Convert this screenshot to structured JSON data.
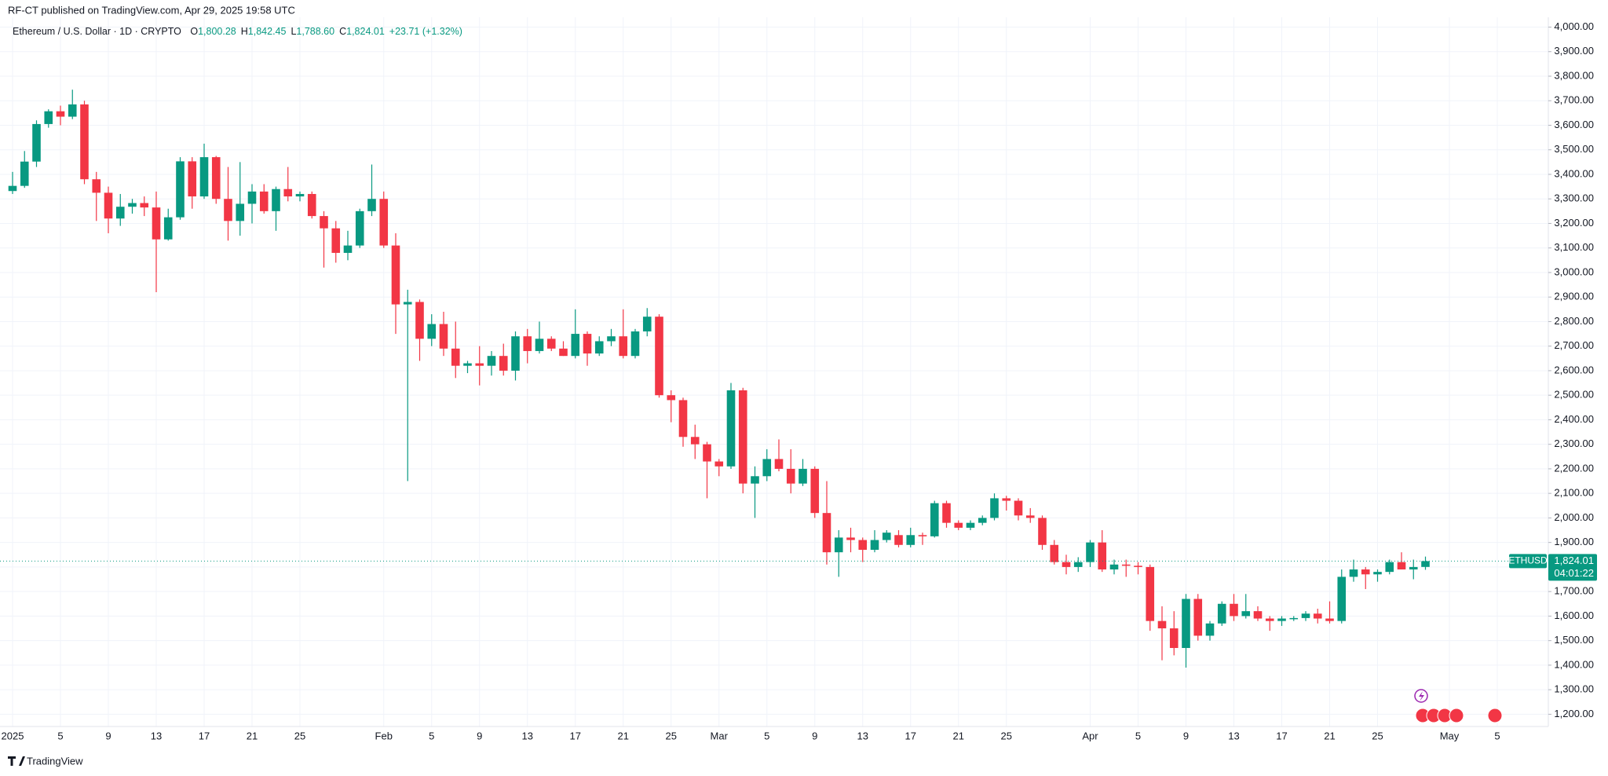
{
  "chart_data": {
    "type": "candlestick",
    "header": "RF-CT published on TradingView.com, Apr 29, 2025 19:58 UTC",
    "symbol_title": "Ethereum / U.S. Dollar · 1D · CRYPTO",
    "ohlc_labels": [
      {
        "prefix": "O",
        "label": "1,800.28"
      },
      {
        "prefix": "H",
        "label": "1,842.45"
      },
      {
        "prefix": "L",
        "label": "1,788.60"
      },
      {
        "prefix": "C",
        "label": "1,824.01"
      }
    ],
    "change_label": "+23.71 (+1.32%)",
    "last_price": {
      "symbol": "ETHUSD",
      "value": 1824.01,
      "label": "1,824.01",
      "countdown": "04:01:22"
    },
    "brand": "TradingView",
    "up_color": "#089981",
    "down_color": "#f23645",
    "grid": true,
    "x": [
      "2025-01-01",
      "2025-01-02",
      "2025-01-03",
      "2025-01-04",
      "2025-01-05",
      "2025-01-06",
      "2025-01-07",
      "2025-01-08",
      "2025-01-09",
      "2025-01-10",
      "2025-01-11",
      "2025-01-12",
      "2025-01-13",
      "2025-01-14",
      "2025-01-15",
      "2025-01-16",
      "2025-01-17",
      "2025-01-18",
      "2025-01-19",
      "2025-01-20",
      "2025-01-21",
      "2025-01-22",
      "2025-01-23",
      "2025-01-24",
      "2025-01-25",
      "2025-01-26",
      "2025-01-27",
      "2025-01-28",
      "2025-01-29",
      "2025-01-30",
      "2025-01-31",
      "2025-02-01",
      "2025-02-02",
      "2025-02-03",
      "2025-02-04",
      "2025-02-05",
      "2025-02-06",
      "2025-02-07",
      "2025-02-08",
      "2025-02-09",
      "2025-02-10",
      "2025-02-11",
      "2025-02-12",
      "2025-02-13",
      "2025-02-14",
      "2025-02-15",
      "2025-02-16",
      "2025-02-17",
      "2025-02-18",
      "2025-02-19",
      "2025-02-20",
      "2025-02-21",
      "2025-02-22",
      "2025-02-23",
      "2025-02-24",
      "2025-02-25",
      "2025-02-26",
      "2025-02-27",
      "2025-02-28",
      "2025-03-01",
      "2025-03-02",
      "2025-03-03",
      "2025-03-04",
      "2025-03-05",
      "2025-03-06",
      "2025-03-07",
      "2025-03-08",
      "2025-03-09",
      "2025-03-10",
      "2025-03-11",
      "2025-03-12",
      "2025-03-13",
      "2025-03-14",
      "2025-03-15",
      "2025-03-16",
      "2025-03-17",
      "2025-03-18",
      "2025-03-19",
      "2025-03-20",
      "2025-03-21",
      "2025-03-22",
      "2025-03-23",
      "2025-03-24",
      "2025-03-25",
      "2025-03-26",
      "2025-03-27",
      "2025-03-28",
      "2025-03-29",
      "2025-03-30",
      "2025-03-31",
      "2025-04-01",
      "2025-04-02",
      "2025-04-03",
      "2025-04-04",
      "2025-04-05",
      "2025-04-06",
      "2025-04-07",
      "2025-04-08",
      "2025-04-09",
      "2025-04-10",
      "2025-04-11",
      "2025-04-12",
      "2025-04-13",
      "2025-04-14",
      "2025-04-15",
      "2025-04-16",
      "2025-04-17",
      "2025-04-18",
      "2025-04-19",
      "2025-04-20",
      "2025-04-21",
      "2025-04-22",
      "2025-04-23",
      "2025-04-24",
      "2025-04-25",
      "2025-04-26",
      "2025-04-27",
      "2025-04-28",
      "2025-04-29"
    ],
    "open": [
      3332,
      3353,
      3452,
      3605,
      3657,
      3635,
      3685,
      3380,
      3325,
      3220,
      3268,
      3283,
      3265,
      3135,
      3225,
      3453,
      3310,
      3470,
      3300,
      3210,
      3280,
      3330,
      3250,
      3340,
      3310,
      3320,
      3230,
      3180,
      3080,
      3110,
      3250,
      3300,
      3110,
      2870,
      2880,
      2730,
      2790,
      2690,
      2620,
      2630,
      2620,
      2660,
      2600,
      2740,
      2680,
      2730,
      2690,
      2660,
      2750,
      2670,
      2720,
      2740,
      2660,
      2760,
      2820,
      2500,
      2480,
      2330,
      2300,
      2230,
      2210,
      2520,
      2140,
      2170,
      2240,
      2200,
      2140,
      2200,
      2020,
      1860,
      1920,
      1910,
      1870,
      1910,
      1930,
      1890,
      1930,
      1925,
      2060,
      1980,
      1960,
      1980,
      2000,
      2080,
      2070,
      2010,
      2000,
      1890,
      1820,
      1800,
      1820,
      1900,
      1790,
      1810,
      1805,
      1800,
      1580,
      1550,
      1470,
      1670,
      1520,
      1570,
      1650,
      1600,
      1620,
      1590,
      1580,
      1590,
      1592,
      1610,
      1590,
      1580,
      1760,
      1790,
      1770,
      1780,
      1820,
      1790,
      1800.28
    ],
    "high": [
      3410,
      3495,
      3620,
      3665,
      3680,
      3745,
      3700,
      3410,
      3350,
      3320,
      3300,
      3310,
      3330,
      3260,
      3470,
      3470,
      3525,
      3475,
      3430,
      3450,
      3360,
      3360,
      3350,
      3430,
      3330,
      3330,
      3250,
      3210,
      3170,
      3260,
      3440,
      3330,
      3160,
      2930,
      2890,
      2830,
      2840,
      2800,
      2640,
      2700,
      2680,
      2710,
      2760,
      2770,
      2800,
      2740,
      2720,
      2850,
      2760,
      2740,
      2770,
      2850,
      2770,
      2855,
      2830,
      2520,
      2490,
      2380,
      2310,
      2240,
      2550,
      2530,
      2210,
      2280,
      2320,
      2280,
      2240,
      2210,
      2150,
      1950,
      1960,
      1920,
      1950,
      1950,
      1950,
      1960,
      1940,
      2070,
      2070,
      1990,
      1990,
      2010,
      2100,
      2090,
      2080,
      2040,
      2010,
      1910,
      1850,
      1840,
      1910,
      1950,
      1830,
      1830,
      1820,
      1810,
      1640,
      1620,
      1690,
      1690,
      1580,
      1660,
      1690,
      1690,
      1640,
      1600,
      1600,
      1600,
      1620,
      1630,
      1660,
      1790,
      1830,
      1800,
      1790,
      1830,
      1860,
      1830,
      1842.45
    ],
    "low": [
      3320,
      3345,
      3430,
      3590,
      3600,
      3625,
      3360,
      3210,
      3160,
      3190,
      3240,
      3230,
      2920,
      3130,
      3215,
      3260,
      3300,
      3280,
      3130,
      3150,
      3200,
      3240,
      3170,
      3290,
      3290,
      3220,
      3020,
      3040,
      3050,
      3100,
      3230,
      3100,
      2750,
      2150,
      2640,
      2700,
      2660,
      2570,
      2590,
      2540,
      2580,
      2580,
      2560,
      2630,
      2670,
      2680,
      2660,
      2650,
      2620,
      2660,
      2700,
      2650,
      2650,
      2740,
      2490,
      2390,
      2290,
      2240,
      2080,
      2170,
      2200,
      2100,
      2000,
      2150,
      2190,
      2100,
      2130,
      2000,
      1810,
      1760,
      1860,
      1820,
      1860,
      1900,
      1880,
      1880,
      1890,
      1920,
      1960,
      1950,
      1950,
      1970,
      1990,
      2030,
      1990,
      1980,
      1870,
      1810,
      1770,
      1780,
      1800,
      1780,
      1770,
      1760,
      1770,
      1540,
      1420,
      1440,
      1390,
      1500,
      1500,
      1560,
      1580,
      1590,
      1580,
      1540,
      1560,
      1580,
      1580,
      1570,
      1570,
      1570,
      1740,
      1710,
      1740,
      1770,
      1790,
      1750,
      1788.6
    ],
    "close": [
      3353,
      3452,
      3605,
      3657,
      3635,
      3685,
      3380,
      3325,
      3220,
      3268,
      3283,
      3265,
      3135,
      3225,
      3453,
      3310,
      3470,
      3300,
      3210,
      3280,
      3330,
      3250,
      3340,
      3310,
      3320,
      3230,
      3180,
      3080,
      3110,
      3250,
      3300,
      3110,
      2870,
      2880,
      2730,
      2790,
      2690,
      2620,
      2630,
      2620,
      2660,
      2600,
      2740,
      2680,
      2730,
      2690,
      2660,
      2750,
      2670,
      2720,
      2740,
      2660,
      2760,
      2820,
      2500,
      2480,
      2330,
      2300,
      2230,
      2210,
      2520,
      2140,
      2170,
      2240,
      2200,
      2140,
      2200,
      2020,
      1860,
      1920,
      1910,
      1870,
      1910,
      1940,
      1890,
      1930,
      1925,
      2060,
      1980,
      1960,
      1980,
      2000,
      2080,
      2070,
      2010,
      2000,
      1890,
      1820,
      1800,
      1820,
      1900,
      1790,
      1810,
      1805,
      1800,
      1580,
      1550,
      1470,
      1670,
      1520,
      1570,
      1650,
      1600,
      1620,
      1590,
      1580,
      1590,
      1592,
      1610,
      1590,
      1580,
      1760,
      1790,
      1770,
      1780,
      1820,
      1790,
      1800,
      1824.01
    ],
    "ylim": [
      1150,
      4040
    ],
    "yticks": [
      {
        "value": 1200,
        "label": "1,200.00"
      },
      {
        "value": 1300,
        "label": "1,300.00"
      },
      {
        "value": 1400,
        "label": "1,400.00"
      },
      {
        "value": 1500,
        "label": "1,500.00"
      },
      {
        "value": 1600,
        "label": "1,600.00"
      },
      {
        "value": 1700,
        "label": "1,700.00"
      },
      {
        "value": 1800,
        "label": "1,800.00"
      },
      {
        "value": 1900,
        "label": "1,900.00"
      },
      {
        "value": 2000,
        "label": "2,000.00"
      },
      {
        "value": 2100,
        "label": "2,100.00"
      },
      {
        "value": 2200,
        "label": "2,200.00"
      },
      {
        "value": 2300,
        "label": "2,300.00"
      },
      {
        "value": 2400,
        "label": "2,400.00"
      },
      {
        "value": 2500,
        "label": "2,500.00"
      },
      {
        "value": 2600,
        "label": "2,600.00"
      },
      {
        "value": 2700,
        "label": "2,700.00"
      },
      {
        "value": 2800,
        "label": "2,800.00"
      },
      {
        "value": 2900,
        "label": "2,900.00"
      },
      {
        "value": 3000,
        "label": "3,000.00"
      },
      {
        "value": 3100,
        "label": "3,100.00"
      },
      {
        "value": 3200,
        "label": "3,200.00"
      },
      {
        "value": 3300,
        "label": "3,300.00"
      },
      {
        "value": 3400,
        "label": "3,400.00"
      },
      {
        "value": 3500,
        "label": "3,500.00"
      },
      {
        "value": 3600,
        "label": "3,600.00"
      },
      {
        "value": 3700,
        "label": "3,700.00"
      },
      {
        "value": 3800,
        "label": "3,800.00"
      },
      {
        "value": 3900,
        "label": "3,900.00"
      },
      {
        "value": 4000,
        "label": "4,000.00"
      }
    ],
    "xticks": [
      {
        "value": "2025-01-01",
        "label": "2025"
      },
      {
        "value": "2025-01-05",
        "label": "5"
      },
      {
        "value": "2025-01-09",
        "label": "9"
      },
      {
        "value": "2025-01-13",
        "label": "13"
      },
      {
        "value": "2025-01-17",
        "label": "17"
      },
      {
        "value": "2025-01-21",
        "label": "21"
      },
      {
        "value": "2025-01-25",
        "label": "25"
      },
      {
        "value": "2025-02-01",
        "label": "Feb"
      },
      {
        "value": "2025-02-05",
        "label": "5"
      },
      {
        "value": "2025-02-09",
        "label": "9"
      },
      {
        "value": "2025-02-13",
        "label": "13"
      },
      {
        "value": "2025-02-17",
        "label": "17"
      },
      {
        "value": "2025-02-21",
        "label": "21"
      },
      {
        "value": "2025-02-25",
        "label": "25"
      },
      {
        "value": "2025-03-01",
        "label": "Mar"
      },
      {
        "value": "2025-03-05",
        "label": "5"
      },
      {
        "value": "2025-03-09",
        "label": "9"
      },
      {
        "value": "2025-03-13",
        "label": "13"
      },
      {
        "value": "2025-03-17",
        "label": "17"
      },
      {
        "value": "2025-03-21",
        "label": "21"
      },
      {
        "value": "2025-03-25",
        "label": "25"
      },
      {
        "value": "2025-04-01",
        "label": "Apr"
      },
      {
        "value": "2025-04-05",
        "label": "5"
      },
      {
        "value": "2025-04-09",
        "label": "9"
      },
      {
        "value": "2025-04-13",
        "label": "13"
      },
      {
        "value": "2025-04-17",
        "label": "17"
      },
      {
        "value": "2025-04-21",
        "label": "21"
      },
      {
        "value": "2025-04-25",
        "label": "25"
      },
      {
        "value": "2025-05-01",
        "label": "May"
      },
      {
        "value": "2025-05-05",
        "label": "5"
      }
    ]
  }
}
